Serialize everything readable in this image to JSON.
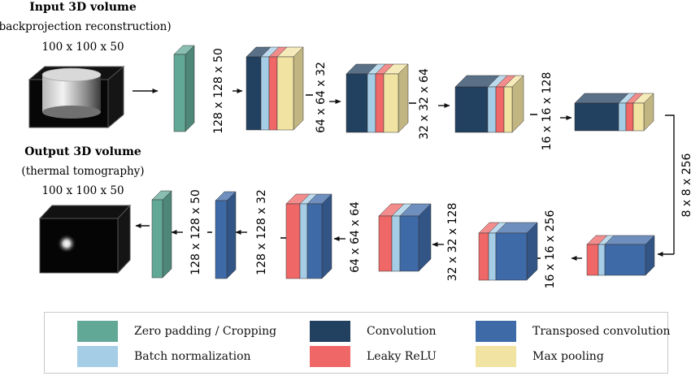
{
  "colors": {
    "zero_padding": "#62a896",
    "convolution": "#22405f",
    "transposed_conv": "#3f6aa8",
    "batch_norm": "#a6cde6",
    "leaky_relu": "#ef6767",
    "max_pooling": "#f1e3a2"
  },
  "input": {
    "title": "Input 3D volume",
    "subtitle": "(backprojection reconstruction)",
    "size": "100 x 100 x 50"
  },
  "output": {
    "title": "Output 3D volume",
    "subtitle": "(thermal tomography)",
    "size": "100 x 100 x 50"
  },
  "encoder_dims": [
    "128 x 128 x 50",
    "64 x 64  x 32",
    "32 x 32  x 64",
    "16 x 16  x 128"
  ],
  "bottleneck_dim": "8 x 8  x 256",
  "decoder_dims": [
    "16 x 16  x 256",
    "32 x 32  x 128",
    "64 x 64  x 64",
    "128 x 128  x 32",
    "128 x 128  x 50"
  ],
  "legend": [
    {
      "label": "Zero padding / Cropping",
      "color_key": "zero_padding"
    },
    {
      "label": "Convolution",
      "color_key": "convolution"
    },
    {
      "label": "Transposed convolution",
      "color_key": "transposed_conv"
    },
    {
      "label": "Batch normalization",
      "color_key": "batch_norm"
    },
    {
      "label": "Leaky ReLU",
      "color_key": "leaky_relu"
    },
    {
      "label": "Max pooling",
      "color_key": "max_pooling"
    }
  ]
}
